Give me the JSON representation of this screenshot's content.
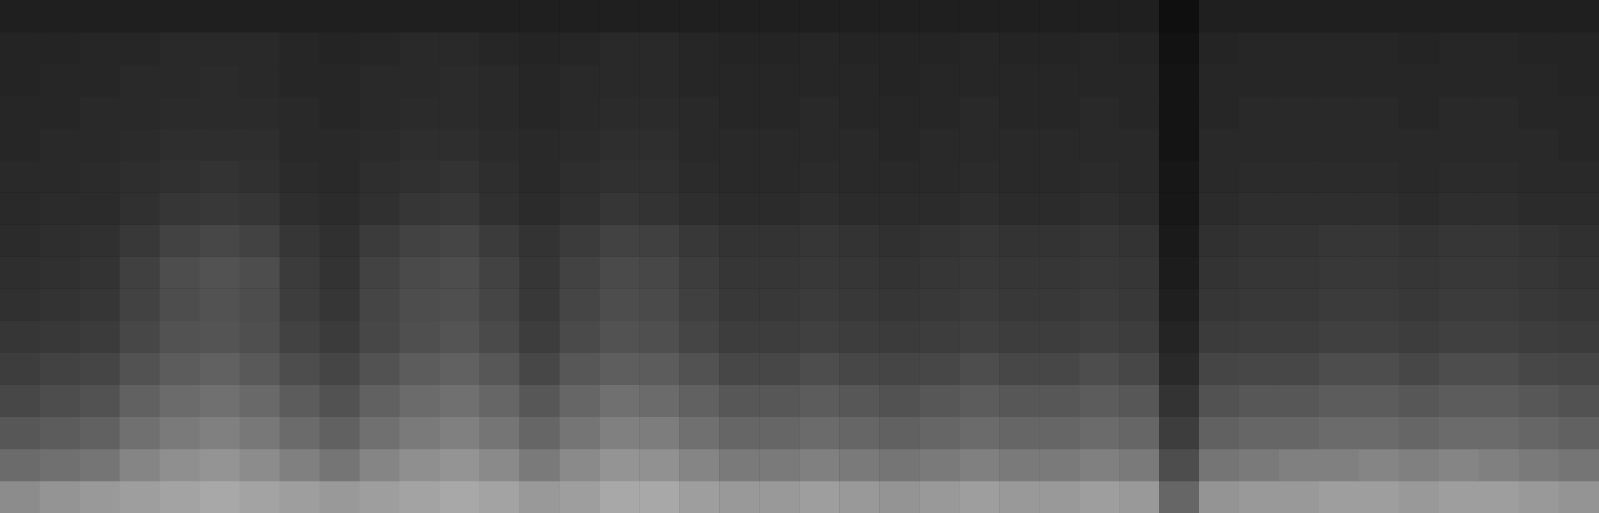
{
  "chart_data": {
    "type": "heatmap",
    "tick_labels": false,
    "zlim": [
      0,
      100
    ],
    "cells": [
      [
        55,
        58,
        60,
        62,
        64,
        66,
        64,
        62,
        60,
        62,
        64,
        66,
        64,
        60,
        62,
        66,
        66,
        62,
        60,
        60,
        62,
        60,
        58,
        60,
        62,
        60,
        60,
        62,
        60,
        40,
        58,
        60,
        60,
        62,
        62,
        60,
        62,
        62,
        60,
        58
      ],
      [
        42,
        44,
        46,
        52,
        56,
        58,
        55,
        50,
        46,
        52,
        56,
        58,
        54,
        48,
        54,
        58,
        57,
        52,
        48,
        48,
        50,
        48,
        46,
        48,
        50,
        48,
        48,
        50,
        48,
        30,
        46,
        48,
        50,
        50,
        52,
        50,
        52,
        50,
        48,
        46
      ],
      [
        34,
        36,
        38,
        44,
        48,
        50,
        47,
        42,
        38,
        44,
        48,
        50,
        46,
        40,
        46,
        50,
        49,
        44,
        40,
        40,
        42,
        40,
        38,
        40,
        42,
        40,
        40,
        42,
        40,
        24,
        38,
        40,
        40,
        42,
        42,
        40,
        42,
        42,
        40,
        38
      ],
      [
        28,
        30,
        32,
        38,
        42,
        44,
        41,
        36,
        32,
        38,
        42,
        44,
        40,
        34,
        40,
        44,
        42,
        38,
        34,
        34,
        36,
        34,
        32,
        34,
        36,
        34,
        34,
        36,
        34,
        20,
        32,
        34,
        34,
        36,
        36,
        34,
        36,
        36,
        34,
        32
      ],
      [
        24,
        26,
        27,
        32,
        36,
        38,
        35,
        30,
        27,
        32,
        36,
        38,
        34,
        28,
        34,
        37,
        36,
        32,
        28,
        28,
        30,
        28,
        27,
        28,
        30,
        28,
        28,
        30,
        28,
        16,
        27,
        28,
        28,
        30,
        30,
        28,
        30,
        30,
        28,
        27
      ],
      [
        21,
        22,
        23,
        28,
        32,
        33,
        31,
        26,
        23,
        28,
        31,
        33,
        29,
        24,
        29,
        32,
        31,
        27,
        24,
        24,
        25,
        24,
        23,
        24,
        25,
        24,
        24,
        25,
        24,
        14,
        23,
        24,
        24,
        25,
        25,
        24,
        25,
        25,
        24,
        23
      ],
      [
        19,
        20,
        21,
        26,
        30,
        32,
        30,
        24,
        21,
        27,
        30,
        31,
        27,
        22,
        27,
        30,
        29,
        25,
        22,
        22,
        23,
        22,
        21,
        22,
        23,
        22,
        22,
        23,
        22,
        12,
        21,
        22,
        22,
        23,
        23,
        22,
        23,
        23,
        22,
        21
      ],
      [
        18,
        19,
        20,
        25,
        30,
        32,
        30,
        23,
        20,
        26,
        29,
        30,
        26,
        21,
        26,
        29,
        28,
        24,
        21,
        21,
        22,
        21,
        20,
        21,
        22,
        21,
        21,
        22,
        21,
        11,
        20,
        21,
        21,
        22,
        22,
        21,
        22,
        22,
        21,
        20
      ],
      [
        17,
        18,
        19,
        22,
        26,
        28,
        26,
        21,
        19,
        23,
        26,
        27,
        23,
        20,
        23,
        26,
        25,
        22,
        20,
        20,
        21,
        20,
        19,
        20,
        21,
        20,
        20,
        21,
        20,
        10,
        19,
        20,
        20,
        21,
        21,
        20,
        21,
        21,
        20,
        19
      ],
      [
        16,
        17,
        17,
        19,
        21,
        22,
        21,
        18,
        17,
        19,
        21,
        22,
        19,
        17,
        19,
        21,
        20,
        18,
        17,
        17,
        18,
        17,
        17,
        17,
        18,
        17,
        17,
        18,
        17,
        9,
        17,
        18,
        18,
        18,
        18,
        17,
        18,
        18,
        17,
        17
      ],
      [
        16,
        16,
        17,
        18,
        19,
        20,
        19,
        17,
        16,
        18,
        19,
        20,
        18,
        16,
        18,
        19,
        19,
        17,
        16,
        16,
        17,
        16,
        16,
        16,
        17,
        16,
        16,
        17,
        16,
        9,
        16,
        17,
        17,
        17,
        17,
        16,
        17,
        17,
        16,
        16
      ],
      [
        15,
        16,
        16,
        17,
        18,
        18,
        18,
        16,
        16,
        17,
        18,
        18,
        17,
        16,
        17,
        18,
        18,
        16,
        16,
        16,
        16,
        16,
        15,
        16,
        16,
        16,
        16,
        16,
        16,
        8,
        16,
        16,
        16,
        16,
        16,
        16,
        16,
        16,
        16,
        15
      ],
      [
        15,
        15,
        16,
        16,
        17,
        17,
        17,
        16,
        15,
        16,
        17,
        17,
        16,
        15,
        16,
        17,
        17,
        16,
        15,
        15,
        16,
        15,
        15,
        15,
        16,
        15,
        15,
        16,
        15,
        8,
        15,
        16,
        16,
        16,
        16,
        15,
        16,
        16,
        15,
        15
      ],
      [
        14,
        15,
        15,
        16,
        16,
        17,
        16,
        15,
        15,
        16,
        16,
        17,
        16,
        15,
        16,
        16,
        16,
        15,
        15,
        15,
        15,
        15,
        14,
        15,
        15,
        15,
        15,
        15,
        15,
        8,
        15,
        15,
        15,
        15,
        15,
        15,
        15,
        15,
        15,
        14
      ],
      [
        14,
        14,
        15,
        15,
        16,
        16,
        16,
        15,
        14,
        15,
        16,
        16,
        15,
        14,
        15,
        16,
        16,
        15,
        14,
        14,
        15,
        14,
        14,
        14,
        15,
        14,
        14,
        15,
        14,
        7,
        14,
        15,
        15,
        15,
        15,
        14,
        15,
        15,
        14,
        14
      ],
      [
        12,
        12,
        12,
        12,
        12,
        12,
        12,
        12,
        12,
        12,
        12,
        12,
        12,
        12,
        12,
        12,
        12,
        12,
        12,
        12,
        12,
        12,
        12,
        12,
        12,
        12,
        12,
        12,
        12,
        6,
        12,
        12,
        12,
        12,
        12,
        12,
        12,
        12,
        12,
        12
      ]
    ]
  }
}
